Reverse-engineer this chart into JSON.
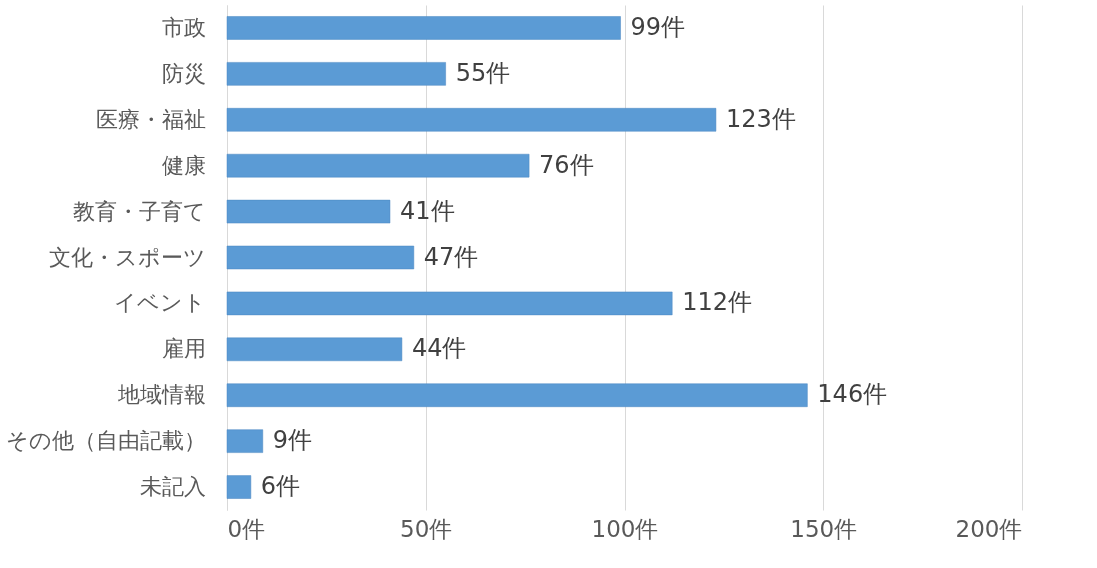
{
  "chart_data": {
    "type": "bar",
    "orientation": "horizontal",
    "categories": [
      "市政",
      "防災",
      "医療・福祉",
      "健康",
      "教育・子育て",
      "文化・スポーツ",
      "イベント",
      "雇用",
      "地域情報",
      "その他（自由記載）",
      "未記入"
    ],
    "values": [
      99,
      55,
      123,
      76,
      41,
      47,
      112,
      44,
      146,
      9,
      6
    ],
    "value_labels": [
      "99件",
      "55件",
      "123件",
      "76件",
      "41件",
      "47件",
      "112件",
      "44件",
      "146件",
      "9件",
      "6件"
    ],
    "color": "#5b9bd5",
    "xlim": [
      0,
      200
    ],
    "xticks": [
      {
        "value": 0,
        "label": "0件"
      },
      {
        "value": 50,
        "label": "50件"
      },
      {
        "value": 100,
        "label": "100件"
      },
      {
        "value": 150,
        "label": "150件"
      },
      {
        "value": 200,
        "label": "200件"
      }
    ],
    "grid": "x"
  }
}
